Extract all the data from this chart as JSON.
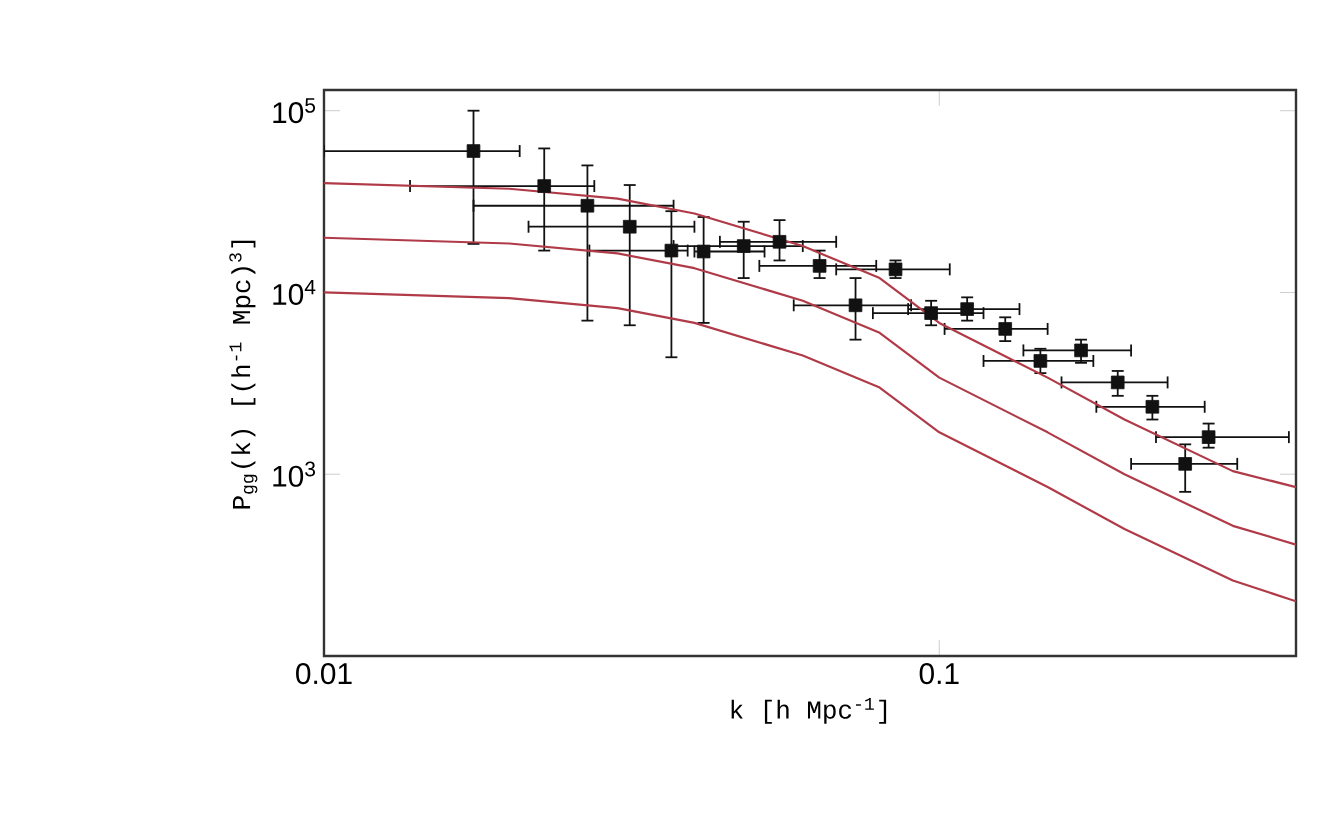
{
  "chart_data": {
    "type": "scatter",
    "xlabel": "k [h Mpc$^{-1}$]",
    "ylabel": "P$_{gg}$(k) [(h$^{-1}$ Mpc)$^{3}$]",
    "log": "xy",
    "xlim": [
      0.01,
      0.38
    ],
    "ylim": [
      100,
      130000
    ],
    "xticks": [
      0.01,
      0.1
    ],
    "yticks": [
      {
        "value": 1000,
        "label": "10$^{3}$"
      },
      {
        "value": 10000,
        "label": "10$^{4}$"
      },
      {
        "value": 100000,
        "label": "10$^{5}$"
      }
    ],
    "grid": false,
    "series": [
      {
        "color": "#111111",
        "marker": "square",
        "x": [
          0.0175,
          0.0228,
          0.0268,
          0.0314,
          0.0367,
          0.0414,
          0.0481,
          0.055,
          0.0639,
          0.0731,
          0.0849,
          0.097,
          0.111,
          0.128,
          0.146,
          0.17,
          0.195,
          0.222,
          0.251,
          0.274
        ],
        "values": [
          60000,
          38500,
          30000,
          23000,
          17000,
          16800,
          18000,
          19000,
          14000,
          8500,
          13400,
          7700,
          8100,
          6300,
          4200,
          4800,
          3200,
          2350,
          1140,
          1600
        ],
        "errors": [
          [
            18500,
            100000
          ],
          [
            17000,
            62000
          ],
          [
            7000,
            50000
          ],
          [
            6600,
            39000
          ],
          [
            4400,
            28000
          ],
          [
            6800,
            26000
          ],
          [
            12000,
            24500
          ],
          [
            15000,
            25000
          ],
          [
            12000,
            17000
          ],
          [
            5500,
            12000
          ],
          [
            12000,
            15000
          ],
          [
            6600,
            9000
          ],
          [
            7000,
            9400
          ],
          [
            5400,
            7300
          ],
          [
            3600,
            4900
          ],
          [
            4100,
            5500
          ],
          [
            2700,
            3700
          ],
          [
            2000,
            2700
          ],
          [
            800,
            1460
          ],
          [
            1400,
            1900
          ]
        ],
        "xerrors": [
          [
            0.01,
            0.0208
          ],
          [
            0.0138,
            0.0275
          ],
          [
            0.0175,
            0.037
          ],
          [
            0.0215,
            0.04
          ],
          [
            0.027,
            0.039
          ],
          [
            0.04,
            0.052
          ],
          [
            0.037,
            0.06
          ],
          [
            0.044,
            0.068
          ],
          [
            0.051,
            0.079
          ],
          [
            0.058,
            0.09
          ],
          [
            0.068,
            0.104
          ],
          [
            0.078,
            0.118
          ],
          [
            0.089,
            0.135
          ],
          [
            0.102,
            0.15
          ],
          [
            0.118,
            0.178
          ],
          [
            0.137,
            0.205
          ],
          [
            0.158,
            0.235
          ],
          [
            0.18,
            0.27
          ],
          [
            0.205,
            0.305
          ],
          [
            0.225,
            0.37
          ]
        ]
      },
      {
        "type": "line",
        "color": "#b03a48",
        "marker": "none",
        "line_style": "solid",
        "x": [
          0.01,
          0.02,
          0.03,
          0.04,
          0.06,
          0.08,
          0.1,
          0.15,
          0.2,
          0.3,
          0.38
        ],
        "values": [
          40000,
          37200,
          32800,
          27200,
          18000,
          12000,
          6800,
          3400,
          2000,
          1040,
          850
        ]
      },
      {
        "type": "line",
        "color": "#b03a48",
        "marker": "none",
        "line_style": "solid",
        "x": [
          0.01,
          0.02,
          0.03,
          0.04,
          0.06,
          0.08,
          0.1,
          0.15,
          0.2,
          0.3,
          0.38
        ],
        "values": [
          20000,
          18600,
          16400,
          13600,
          9000,
          6000,
          3400,
          1700,
          1000,
          520,
          410
        ]
      },
      {
        "type": "line",
        "color": "#b03a48",
        "marker": "none",
        "line_style": "solid",
        "x": [
          0.01,
          0.02,
          0.03,
          0.04,
          0.06,
          0.08,
          0.1,
          0.15,
          0.2,
          0.3,
          0.38
        ],
        "values": [
          10000,
          9300,
          8200,
          6800,
          4500,
          3000,
          1700,
          850,
          500,
          260,
          200
        ]
      }
    ]
  }
}
